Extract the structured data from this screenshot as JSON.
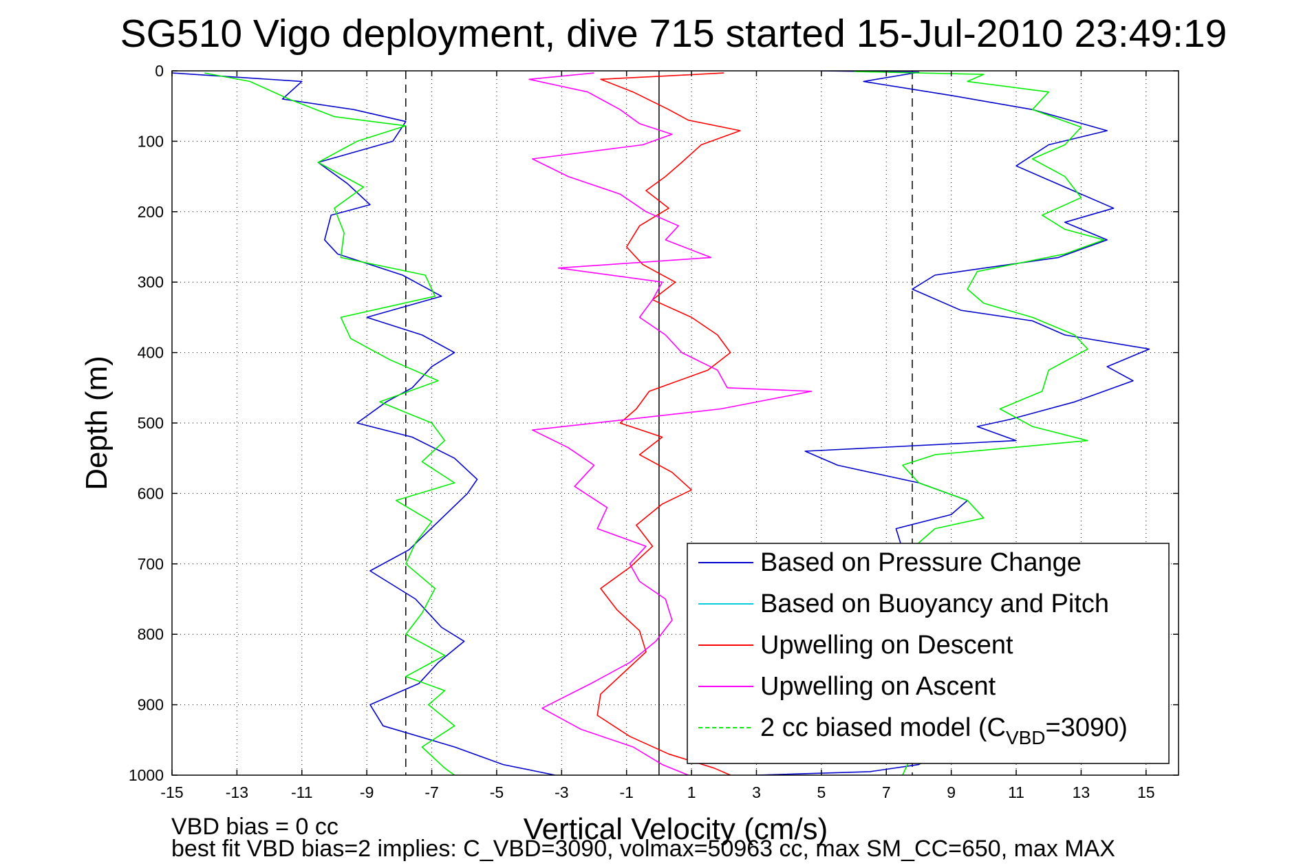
{
  "chart_data": {
    "type": "line",
    "title": "SG510 Vigo deployment, dive 715 started 15-Jul-2010 23:49:19",
    "xlabel": "Vertical Velocity (cm/s)",
    "ylabel": "Depth (m)",
    "xlim": [
      -15,
      16
    ],
    "ylim": [
      0,
      1000
    ],
    "y_reversed": true,
    "grid": true,
    "x_ticks": [
      -15,
      -13,
      -11,
      -9,
      -7,
      -5,
      -3,
      -1,
      1,
      3,
      5,
      7,
      9,
      11,
      13,
      15
    ],
    "y_ticks": [
      0,
      100,
      200,
      300,
      400,
      500,
      600,
      700,
      800,
      900,
      1000
    ],
    "reference_lines": {
      "solid_x": [
        0
      ],
      "dashed_x": [
        -7.8,
        7.8
      ]
    },
    "legend_position": "lower-right",
    "legend": [
      {
        "label": "Based on Pressure Change",
        "color": "#0000cc",
        "style": "solid"
      },
      {
        "label": "Based on Buoyancy and Pitch",
        "color": "#00ccdd",
        "style": "solid"
      },
      {
        "label": "Upwelling on Descent",
        "color": "#ff0000",
        "style": "solid"
      },
      {
        "label": "Upwelling on Ascent",
        "color": "#ff00ff",
        "style": "solid"
      },
      {
        "label_parts": [
          "2 cc biased model (C",
          "VBD",
          "=3090)"
        ],
        "color": "#00ee00",
        "style": "dashed"
      }
    ],
    "series": [
      {
        "color": "#0000cc",
        "points": [
          [
            -15,
            3
          ],
          [
            -11,
            15
          ],
          [
            -11.6,
            40
          ],
          [
            -9.4,
            55
          ],
          [
            -7.8,
            72
          ],
          [
            -8.2,
            100
          ],
          [
            -10.5,
            130
          ],
          [
            -9.6,
            160
          ],
          [
            -8.9,
            190
          ],
          [
            -10.1,
            205
          ],
          [
            -10.3,
            240
          ],
          [
            -9.9,
            260
          ],
          [
            -7.9,
            290
          ],
          [
            -6.7,
            320
          ],
          [
            -9.0,
            350
          ],
          [
            -7.3,
            375
          ],
          [
            -6.3,
            400
          ],
          [
            -7.0,
            420
          ],
          [
            -7.6,
            450
          ],
          [
            -8.4,
            470
          ],
          [
            -9.3,
            500
          ],
          [
            -7.6,
            520
          ],
          [
            -6.3,
            550
          ],
          [
            -5.6,
            580
          ],
          [
            -5.9,
            600
          ],
          [
            -6.8,
            640
          ],
          [
            -7.7,
            680
          ],
          [
            -8.9,
            710
          ],
          [
            -7.5,
            750
          ],
          [
            -6.7,
            790
          ],
          [
            -6.0,
            810
          ],
          [
            -6.8,
            840
          ],
          [
            -7.4,
            870
          ],
          [
            -8.9,
            900
          ],
          [
            -8.5,
            930
          ],
          [
            -6.3,
            960
          ],
          [
            -4.8,
            985
          ],
          [
            -3.2,
            1000
          ]
        ]
      },
      {
        "color": "#0000cc",
        "points": [
          [
            5,
            0
          ],
          [
            8,
            2
          ],
          [
            6.3,
            15
          ],
          [
            9,
            35
          ],
          [
            11.5,
            55
          ],
          [
            13.8,
            85
          ],
          [
            12,
            105
          ],
          [
            11,
            135
          ],
          [
            12.5,
            165
          ],
          [
            14,
            195
          ],
          [
            12.5,
            215
          ],
          [
            13.8,
            240
          ],
          [
            12.3,
            265
          ],
          [
            8.5,
            290
          ],
          [
            7.8,
            310
          ],
          [
            9.3,
            340
          ],
          [
            11.5,
            355
          ],
          [
            12.5,
            375
          ],
          [
            15.1,
            395
          ],
          [
            13.8,
            420
          ],
          [
            14.6,
            440
          ],
          [
            12.8,
            470
          ],
          [
            10.8,
            495
          ],
          [
            9.8,
            505
          ],
          [
            11,
            525
          ],
          [
            4.5,
            540
          ],
          [
            5.5,
            560
          ],
          [
            8,
            585
          ],
          [
            9.5,
            610
          ],
          [
            9,
            630
          ],
          [
            7.3,
            650
          ],
          [
            7.5,
            680
          ],
          [
            7.5,
            720
          ],
          [
            8,
            760
          ],
          [
            8.5,
            800
          ],
          [
            8.2,
            850
          ],
          [
            8.0,
            900
          ],
          [
            8.8,
            960
          ],
          [
            8,
            985
          ],
          [
            6.5,
            995
          ],
          [
            3,
            1000
          ]
        ]
      },
      {
        "color": "#00ee00",
        "points": [
          [
            -14,
            3
          ],
          [
            -12.6,
            15
          ],
          [
            -11.4,
            40
          ],
          [
            -10,
            65
          ],
          [
            -7.8,
            78
          ],
          [
            -9.3,
            100
          ],
          [
            -10.5,
            130
          ],
          [
            -9.1,
            165
          ],
          [
            -10,
            195
          ],
          [
            -9.7,
            230
          ],
          [
            -9.8,
            265
          ],
          [
            -7.2,
            290
          ],
          [
            -6.9,
            320
          ],
          [
            -9.8,
            350
          ],
          [
            -9.5,
            380
          ],
          [
            -8.3,
            410
          ],
          [
            -6.8,
            440
          ],
          [
            -8.6,
            470
          ],
          [
            -7.0,
            500
          ],
          [
            -6.6,
            525
          ],
          [
            -7.3,
            555
          ],
          [
            -6.3,
            585
          ],
          [
            -8.1,
            610
          ],
          [
            -7.0,
            640
          ],
          [
            -7.5,
            670
          ],
          [
            -7.8,
            700
          ],
          [
            -6.9,
            735
          ],
          [
            -7.3,
            770
          ],
          [
            -7.8,
            800
          ],
          [
            -6.6,
            830
          ],
          [
            -7.8,
            860
          ],
          [
            -6.6,
            880
          ],
          [
            -7.1,
            900
          ],
          [
            -6.3,
            930
          ],
          [
            -7.3,
            960
          ],
          [
            -6.6,
            990
          ],
          [
            -6.3,
            1000
          ]
        ]
      },
      {
        "color": "#00ee00",
        "points": [
          [
            6,
            1
          ],
          [
            10,
            5
          ],
          [
            9.5,
            15
          ],
          [
            12,
            30
          ],
          [
            11.5,
            55
          ],
          [
            13,
            80
          ],
          [
            12.5,
            105
          ],
          [
            11.5,
            125
          ],
          [
            12.5,
            150
          ],
          [
            13,
            180
          ],
          [
            11.8,
            205
          ],
          [
            12.5,
            225
          ],
          [
            13.7,
            240
          ],
          [
            12.5,
            260
          ],
          [
            9.8,
            285
          ],
          [
            9.5,
            310
          ],
          [
            10,
            330
          ],
          [
            11.5,
            350
          ],
          [
            12.8,
            375
          ],
          [
            13.2,
            395
          ],
          [
            12,
            425
          ],
          [
            11.8,
            455
          ],
          [
            10.5,
            480
          ],
          [
            11.5,
            505
          ],
          [
            13.2,
            525
          ],
          [
            8.5,
            545
          ],
          [
            7.5,
            560
          ],
          [
            8,
            585
          ],
          [
            9.5,
            610
          ],
          [
            10,
            635
          ],
          [
            8.5,
            650
          ],
          [
            8,
            670
          ],
          [
            7.5,
            700
          ],
          [
            6.5,
            740
          ],
          [
            7,
            780
          ],
          [
            8,
            820
          ],
          [
            7.5,
            860
          ],
          [
            8.5,
            900
          ],
          [
            8,
            950
          ],
          [
            7.5,
            1000
          ]
        ]
      },
      {
        "color": "#ff0000",
        "points": [
          [
            2,
            3
          ],
          [
            -1.8,
            12
          ],
          [
            -0.8,
            30
          ],
          [
            0.3,
            55
          ],
          [
            0.9,
            70
          ],
          [
            2.5,
            85
          ],
          [
            1.3,
            105
          ],
          [
            0.7,
            130
          ],
          [
            0.2,
            150
          ],
          [
            -0.4,
            170
          ],
          [
            0.3,
            195
          ],
          [
            -0.6,
            220
          ],
          [
            -1.0,
            250
          ],
          [
            -0.5,
            275
          ],
          [
            0.5,
            300
          ],
          [
            -0.2,
            325
          ],
          [
            1.0,
            350
          ],
          [
            1.8,
            375
          ],
          [
            2.2,
            400
          ],
          [
            1.5,
            425
          ],
          [
            -0.3,
            455
          ],
          [
            -0.7,
            480
          ],
          [
            -1.2,
            500
          ],
          [
            0.1,
            520
          ],
          [
            -0.6,
            545
          ],
          [
            0.4,
            570
          ],
          [
            1.0,
            595
          ],
          [
            0.1,
            615
          ],
          [
            -0.7,
            645
          ],
          [
            -0.2,
            675
          ],
          [
            -0.9,
            705
          ],
          [
            -1.8,
            735
          ],
          [
            -1.3,
            765
          ],
          [
            -0.6,
            795
          ],
          [
            -0.4,
            825
          ],
          [
            -1.1,
            855
          ],
          [
            -1.8,
            885
          ],
          [
            -1.9,
            915
          ],
          [
            -0.9,
            945
          ],
          [
            0.3,
            970
          ],
          [
            1.7,
            990
          ],
          [
            2.2,
            1000
          ]
        ]
      },
      {
        "color": "#ff00ff",
        "points": [
          [
            -2,
            3
          ],
          [
            -4,
            12
          ],
          [
            -2.2,
            30
          ],
          [
            -1.2,
            55
          ],
          [
            -0.6,
            75
          ],
          [
            0.4,
            90
          ],
          [
            -0.5,
            105
          ],
          [
            -3.9,
            125
          ],
          [
            -2.8,
            150
          ],
          [
            -1.2,
            175
          ],
          [
            -0.4,
            200
          ],
          [
            0.6,
            220
          ],
          [
            0.2,
            240
          ],
          [
            1.6,
            265
          ],
          [
            -3.1,
            280
          ],
          [
            0.1,
            300
          ],
          [
            -0.2,
            325
          ],
          [
            -0.6,
            350
          ],
          [
            0.2,
            375
          ],
          [
            0.7,
            400
          ],
          [
            1.8,
            425
          ],
          [
            2.1,
            450
          ],
          [
            4.7,
            455
          ],
          [
            1.9,
            480
          ],
          [
            -3.9,
            510
          ],
          [
            -2.8,
            535
          ],
          [
            -2.0,
            560
          ],
          [
            -2.6,
            590
          ],
          [
            -1.6,
            620
          ],
          [
            -1.9,
            650
          ],
          [
            -0.4,
            675
          ],
          [
            -0.9,
            700
          ],
          [
            -0.6,
            725
          ],
          [
            0.2,
            750
          ],
          [
            0.4,
            780
          ],
          [
            -0.1,
            810
          ],
          [
            -0.9,
            840
          ],
          [
            -2.1,
            870
          ],
          [
            -3.6,
            905
          ],
          [
            -2.4,
            935
          ],
          [
            -0.8,
            960
          ],
          [
            0.1,
            985
          ],
          [
            0.9,
            1000
          ]
        ]
      }
    ]
  },
  "footer": {
    "vbd_bias": "VBD bias = 0 cc",
    "best_fit": "best fit VBD bias=2 implies: C_VBD=3090, volmax=50963 cc, max SM_CC=650, max MAX"
  }
}
